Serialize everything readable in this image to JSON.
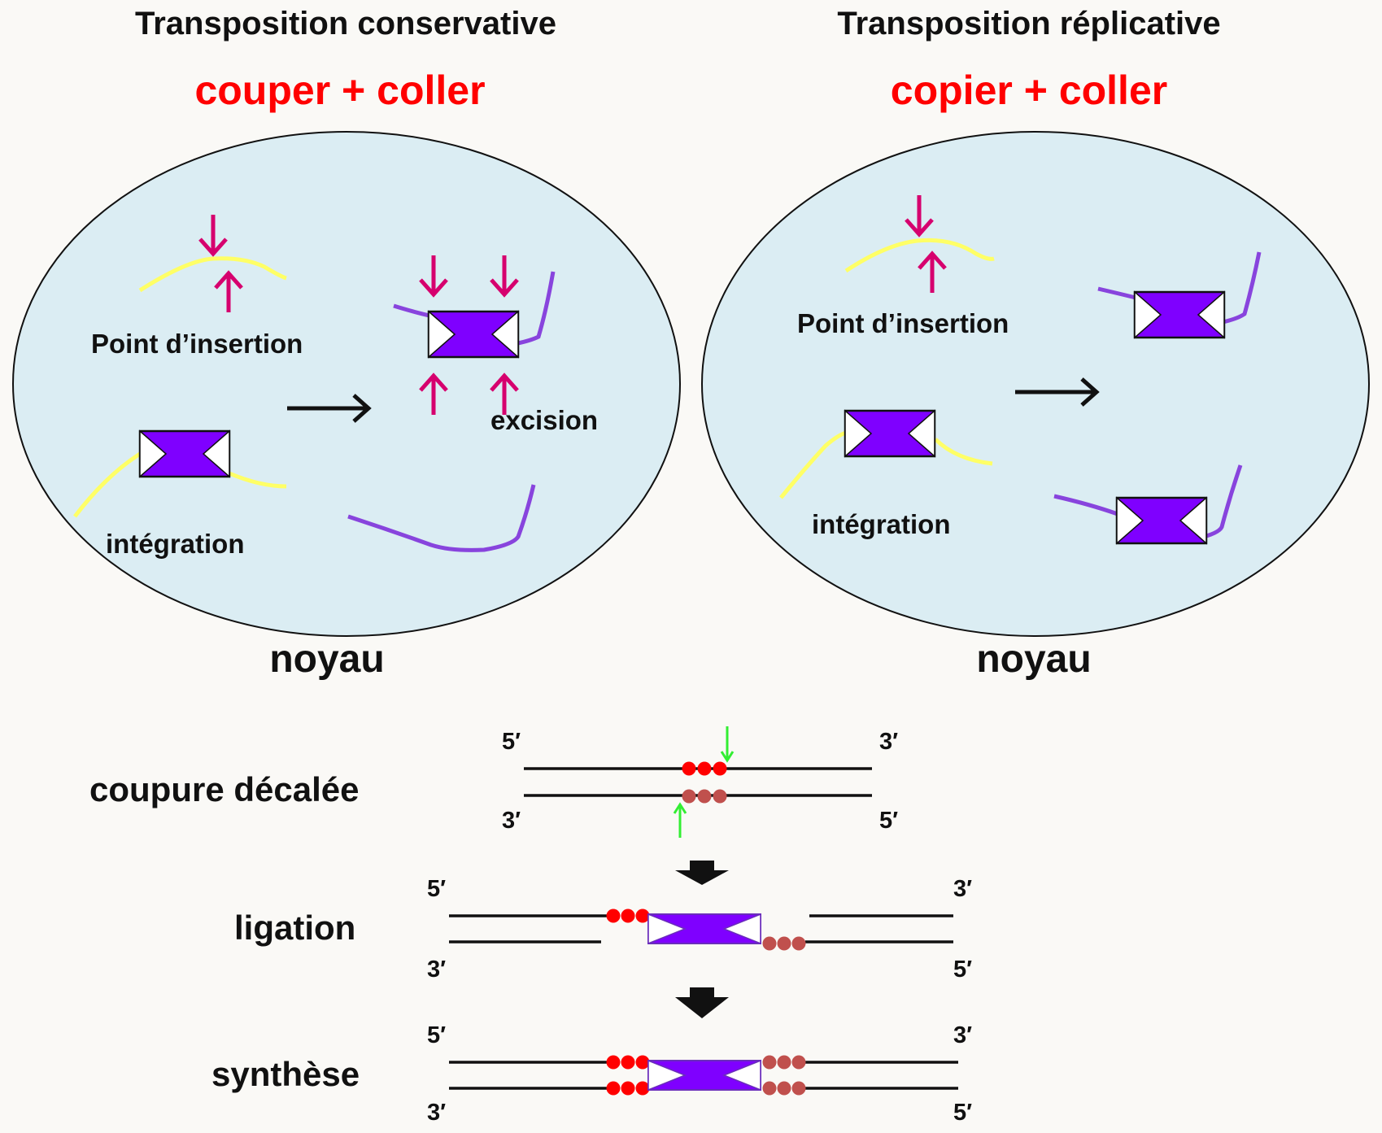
{
  "left_panel": {
    "title": "Transposition conservative",
    "subtitle": "couper + coller",
    "insertion_label": "Point d’insertion",
    "excision_label": "excision",
    "integration_label": "intégration",
    "nucleus_label": "noyau"
  },
  "right_panel": {
    "title": "Transposition réplicative",
    "subtitle": "copier + coller",
    "insertion_label": "Point d’insertion",
    "integration_label": "intégration",
    "nucleus_label": "noyau"
  },
  "mechanism": {
    "step1_label": "coupure décalée",
    "step2_label": "ligation",
    "step3_label": "synthèse",
    "end_5prime": "5′",
    "end_3prime": "3′"
  },
  "colors": {
    "nucleus_fill": "#dbedf3",
    "transposon": "#7f00ff",
    "host_dna": "#ffff66",
    "donor_dna": "#8844dd",
    "cut_arrow": "#d6006e",
    "move_arrow": "#111111",
    "target_site_top": "#ff0000",
    "target_site_bottom": "#c0504d",
    "stagger_cut_arrow": "#33ee33"
  }
}
